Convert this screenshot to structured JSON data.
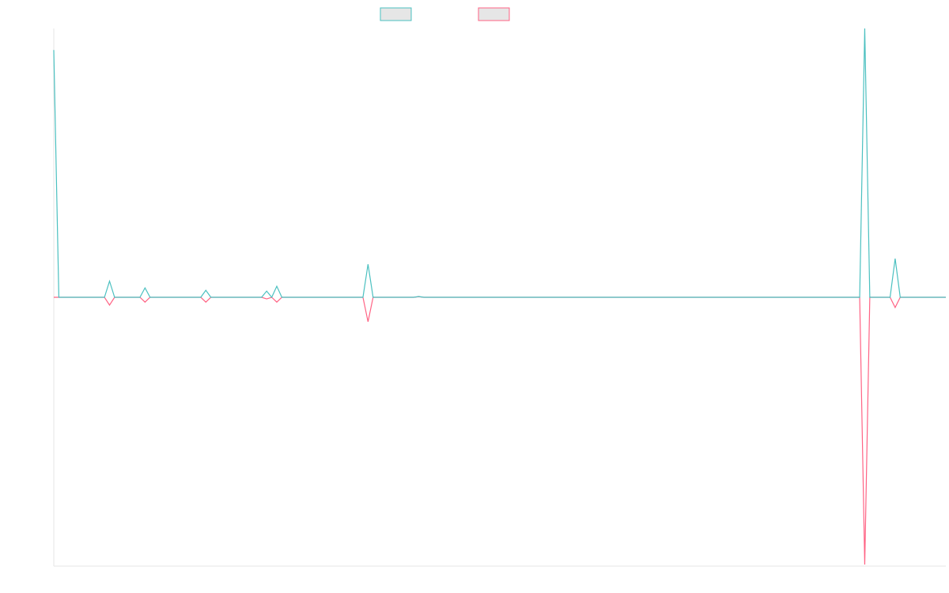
{
  "chart_data": {
    "type": "line",
    "x": [
      0,
      1,
      10,
      11,
      12,
      17,
      18,
      19,
      29,
      30,
      31,
      41,
      42,
      43,
      44,
      45,
      61,
      62,
      63,
      71,
      72,
      73,
      159,
      160,
      161,
      165,
      166,
      167,
      176
    ],
    "xlim": [
      0,
      176
    ],
    "ylim": [
      -100,
      100
    ],
    "legend": "top",
    "series": [
      {
        "color": "#4bc0c0",
        "values": [
          92,
          0,
          0,
          6,
          0,
          0,
          3.5,
          0,
          0,
          2.6,
          0,
          0,
          2.3,
          0,
          4.1,
          0,
          0,
          12.3,
          0,
          0,
          0.3,
          0,
          0,
          100,
          0,
          0,
          14.4,
          0,
          0
        ]
      },
      {
        "color": "#ff6384",
        "values": [
          0,
          0,
          0,
          -2.9,
          0,
          0,
          -1.8,
          0,
          0,
          -1.8,
          0,
          0,
          -0.6,
          0,
          -1.8,
          0,
          0,
          -9.1,
          0,
          0,
          0.2,
          0,
          0,
          -99.4,
          0,
          0,
          -3.8,
          0,
          0
        ]
      }
    ]
  }
}
